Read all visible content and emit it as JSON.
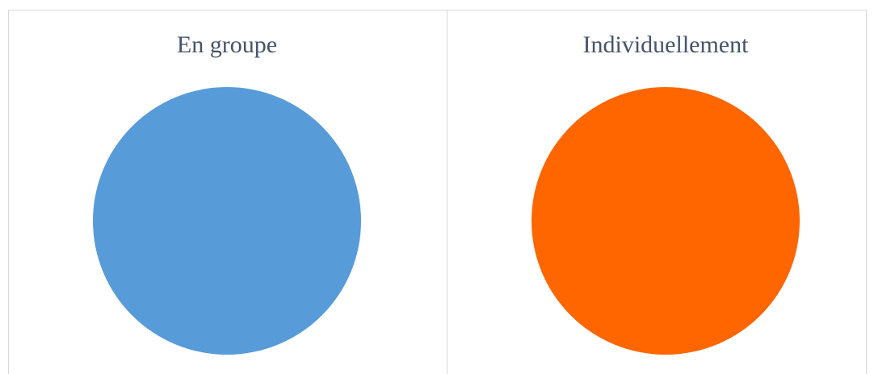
{
  "chart_data": [
    {
      "type": "pie",
      "title": "En groupe",
      "values": [
        100
      ],
      "colors": [
        "#579bd9"
      ]
    },
    {
      "type": "pie",
      "title": "Individuellement",
      "values": [
        100
      ],
      "colors": [
        "#ff6600"
      ]
    }
  ]
}
